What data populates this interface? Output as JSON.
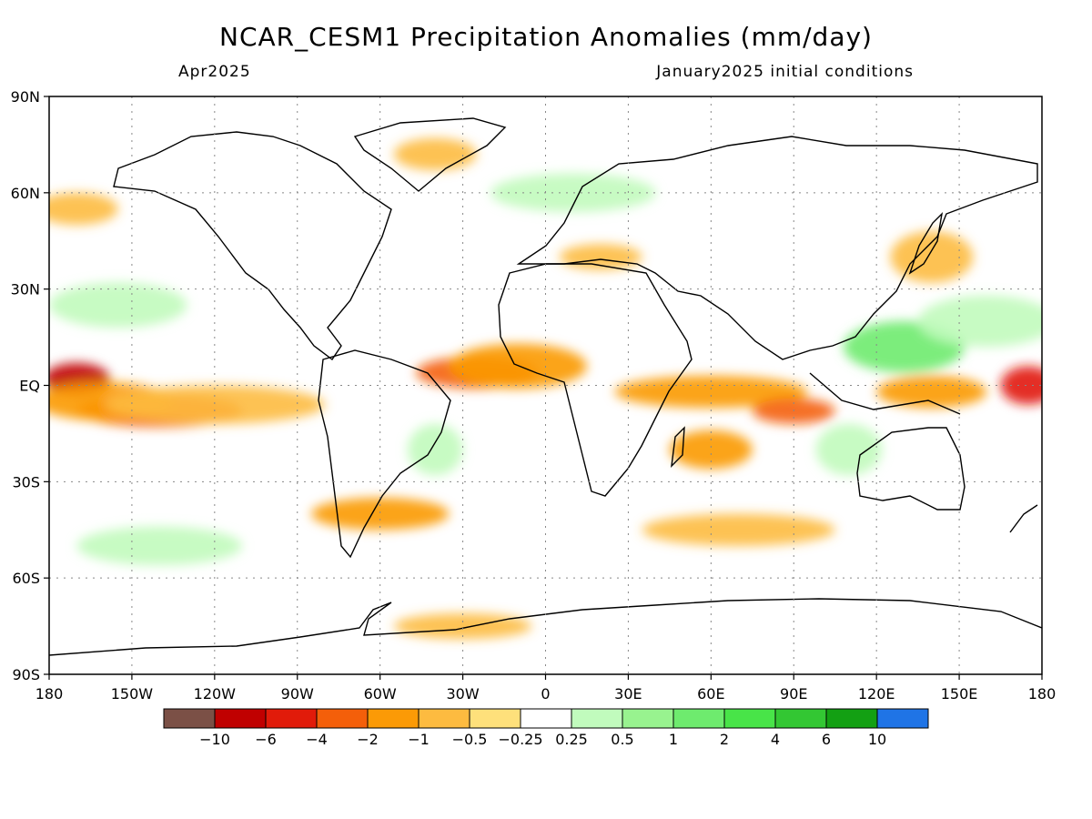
{
  "title": "NCAR_CESM1 Precipitation Anomalies (mm/day)",
  "subtitle_left": "Apr2025",
  "subtitle_right": "January2025 initial conditions",
  "lat_labels": [
    "90N",
    "60N",
    "30N",
    "EQ",
    "30S",
    "60S",
    "90S"
  ],
  "lat_values": [
    90,
    60,
    30,
    0,
    -30,
    -60,
    -90
  ],
  "lon_labels": [
    "180",
    "150W",
    "120W",
    "90W",
    "60W",
    "30W",
    "0",
    "30E",
    "60E",
    "90E",
    "120E",
    "150E",
    "180"
  ],
  "lon_values": [
    -180,
    -150,
    -120,
    -90,
    -60,
    -30,
    0,
    30,
    60,
    90,
    120,
    150,
    180
  ],
  "colorbar": {
    "colors": [
      "#7b5046",
      "#c00000",
      "#e11b0a",
      "#f45f0a",
      "#fb9a06",
      "#fdbb40",
      "#fee07b",
      "#ffffff",
      "#c1fbbd",
      "#98f38f",
      "#6eeb6e",
      "#48e448",
      "#33c733",
      "#13a013",
      "#1f74e6"
    ],
    "tick_labels": [
      "-10",
      "-6",
      "-4",
      "-2",
      "-1",
      "-0.5",
      "-0.25",
      "0.25",
      "0.5",
      "1",
      "2",
      "4",
      "6",
      "10"
    ]
  },
  "anomaly_regions": [
    {
      "lon": -170,
      "lat": 2,
      "rx": 12,
      "ry": 5,
      "value": -6
    },
    {
      "lon": -140,
      "lat": -8,
      "rx": 30,
      "ry": 5,
      "value": -2
    },
    {
      "lon": -160,
      "lat": -5,
      "rx": 25,
      "ry": 6,
      "value": -1
    },
    {
      "lon": -120,
      "lat": -6,
      "rx": 40,
      "ry": 6,
      "value": -0.5
    },
    {
      "lon": -25,
      "lat": 4,
      "rx": 22,
      "ry": 5,
      "value": -2
    },
    {
      "lon": -10,
      "lat": 6,
      "rx": 25,
      "ry": 7,
      "value": -1
    },
    {
      "lon": 60,
      "lat": -2,
      "rx": 35,
      "ry": 5,
      "value": -1
    },
    {
      "lon": 90,
      "lat": -8,
      "rx": 15,
      "ry": 4,
      "value": -2
    },
    {
      "lon": 175,
      "lat": 0,
      "rx": 10,
      "ry": 6,
      "value": -4
    },
    {
      "lon": 140,
      "lat": -2,
      "rx": 20,
      "ry": 5,
      "value": -1
    },
    {
      "lon": 130,
      "lat": 12,
      "rx": 22,
      "ry": 8,
      "value": 2
    },
    {
      "lon": 160,
      "lat": 20,
      "rx": 25,
      "ry": 8,
      "value": 0.5
    },
    {
      "lon": -155,
      "lat": 25,
      "rx": 25,
      "ry": 7,
      "value": 0.5
    },
    {
      "lon": -40,
      "lat": -20,
      "rx": 10,
      "ry": 8,
      "value": 0.5
    },
    {
      "lon": -60,
      "lat": -40,
      "rx": 25,
      "ry": 5,
      "value": -1
    },
    {
      "lon": 60,
      "lat": -20,
      "rx": 15,
      "ry": 6,
      "value": -1
    },
    {
      "lon": 110,
      "lat": -20,
      "rx": 12,
      "ry": 8,
      "value": 0.5
    },
    {
      "lon": -40,
      "lat": 72,
      "rx": 15,
      "ry": 5,
      "value": -0.5
    },
    {
      "lon": -170,
      "lat": 55,
      "rx": 15,
      "ry": 5,
      "value": -0.5
    },
    {
      "lon": 140,
      "lat": 40,
      "rx": 15,
      "ry": 8,
      "value": -0.5
    },
    {
      "lon": 20,
      "lat": 40,
      "rx": 15,
      "ry": 4,
      "value": -0.5
    },
    {
      "lon": -30,
      "lat": -75,
      "rx": 25,
      "ry": 4,
      "value": -0.5
    },
    {
      "lon": -140,
      "lat": -50,
      "rx": 30,
      "ry": 6,
      "value": 0.5
    },
    {
      "lon": 70,
      "lat": -45,
      "rx": 35,
      "ry": 5,
      "value": -0.5
    },
    {
      "lon": 10,
      "lat": 60,
      "rx": 30,
      "ry": 6,
      "value": 0.5
    }
  ]
}
